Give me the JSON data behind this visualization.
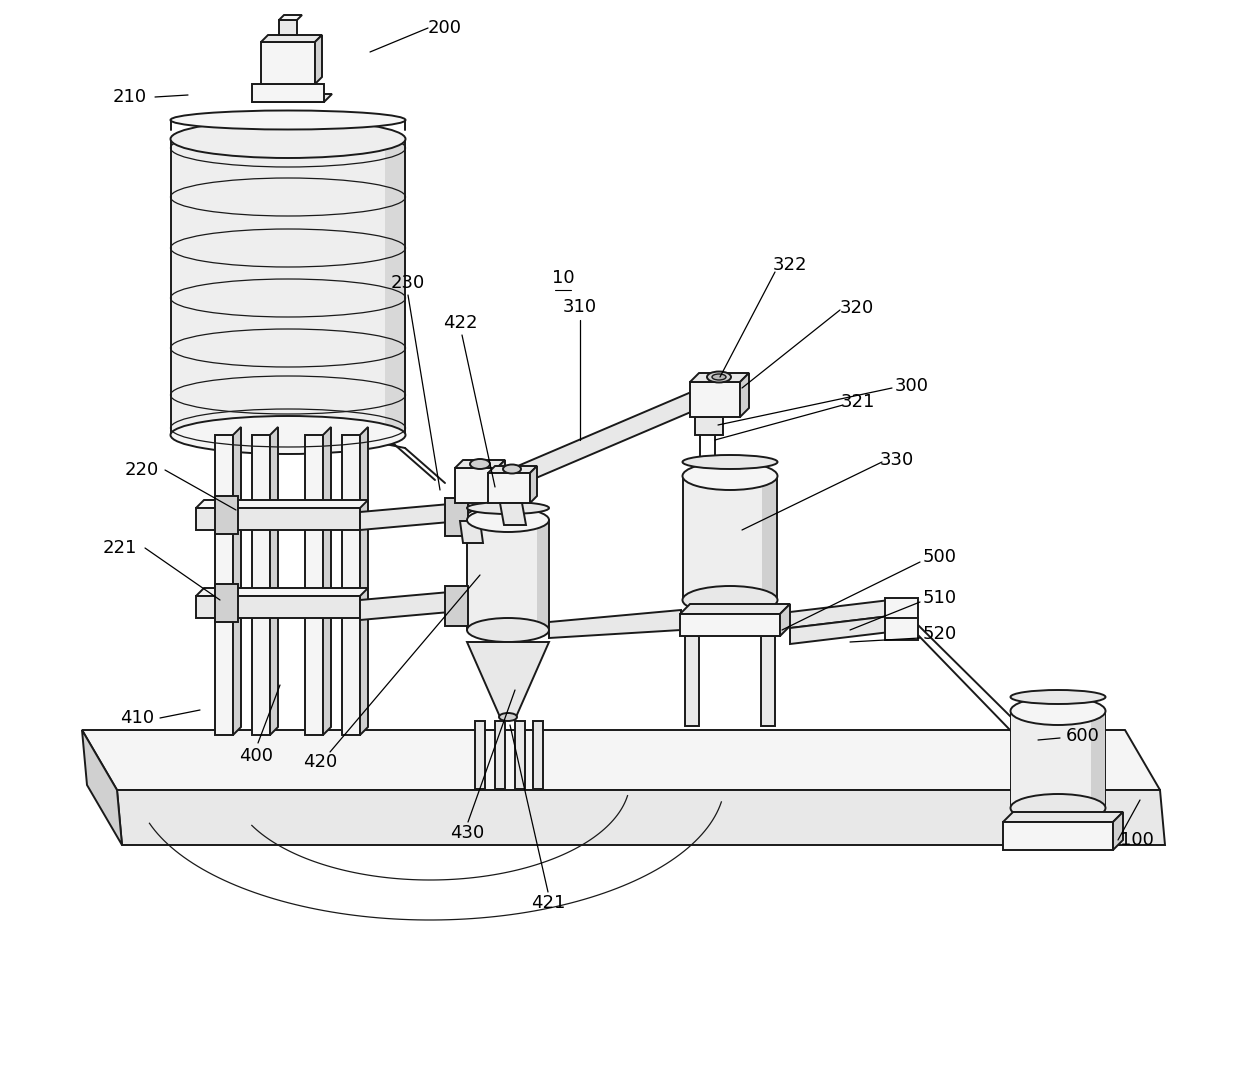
{
  "bg": "#ffffff",
  "lc": "#1a1a1a",
  "fill_light": "#f5f5f5",
  "fill_mid": "#e8e8e8",
  "fill_dark": "#d0d0d0",
  "fill_darker": "#b8b8b8",
  "lw": 1.4,
  "lw_thin": 0.9,
  "lw_label": 0.9
}
